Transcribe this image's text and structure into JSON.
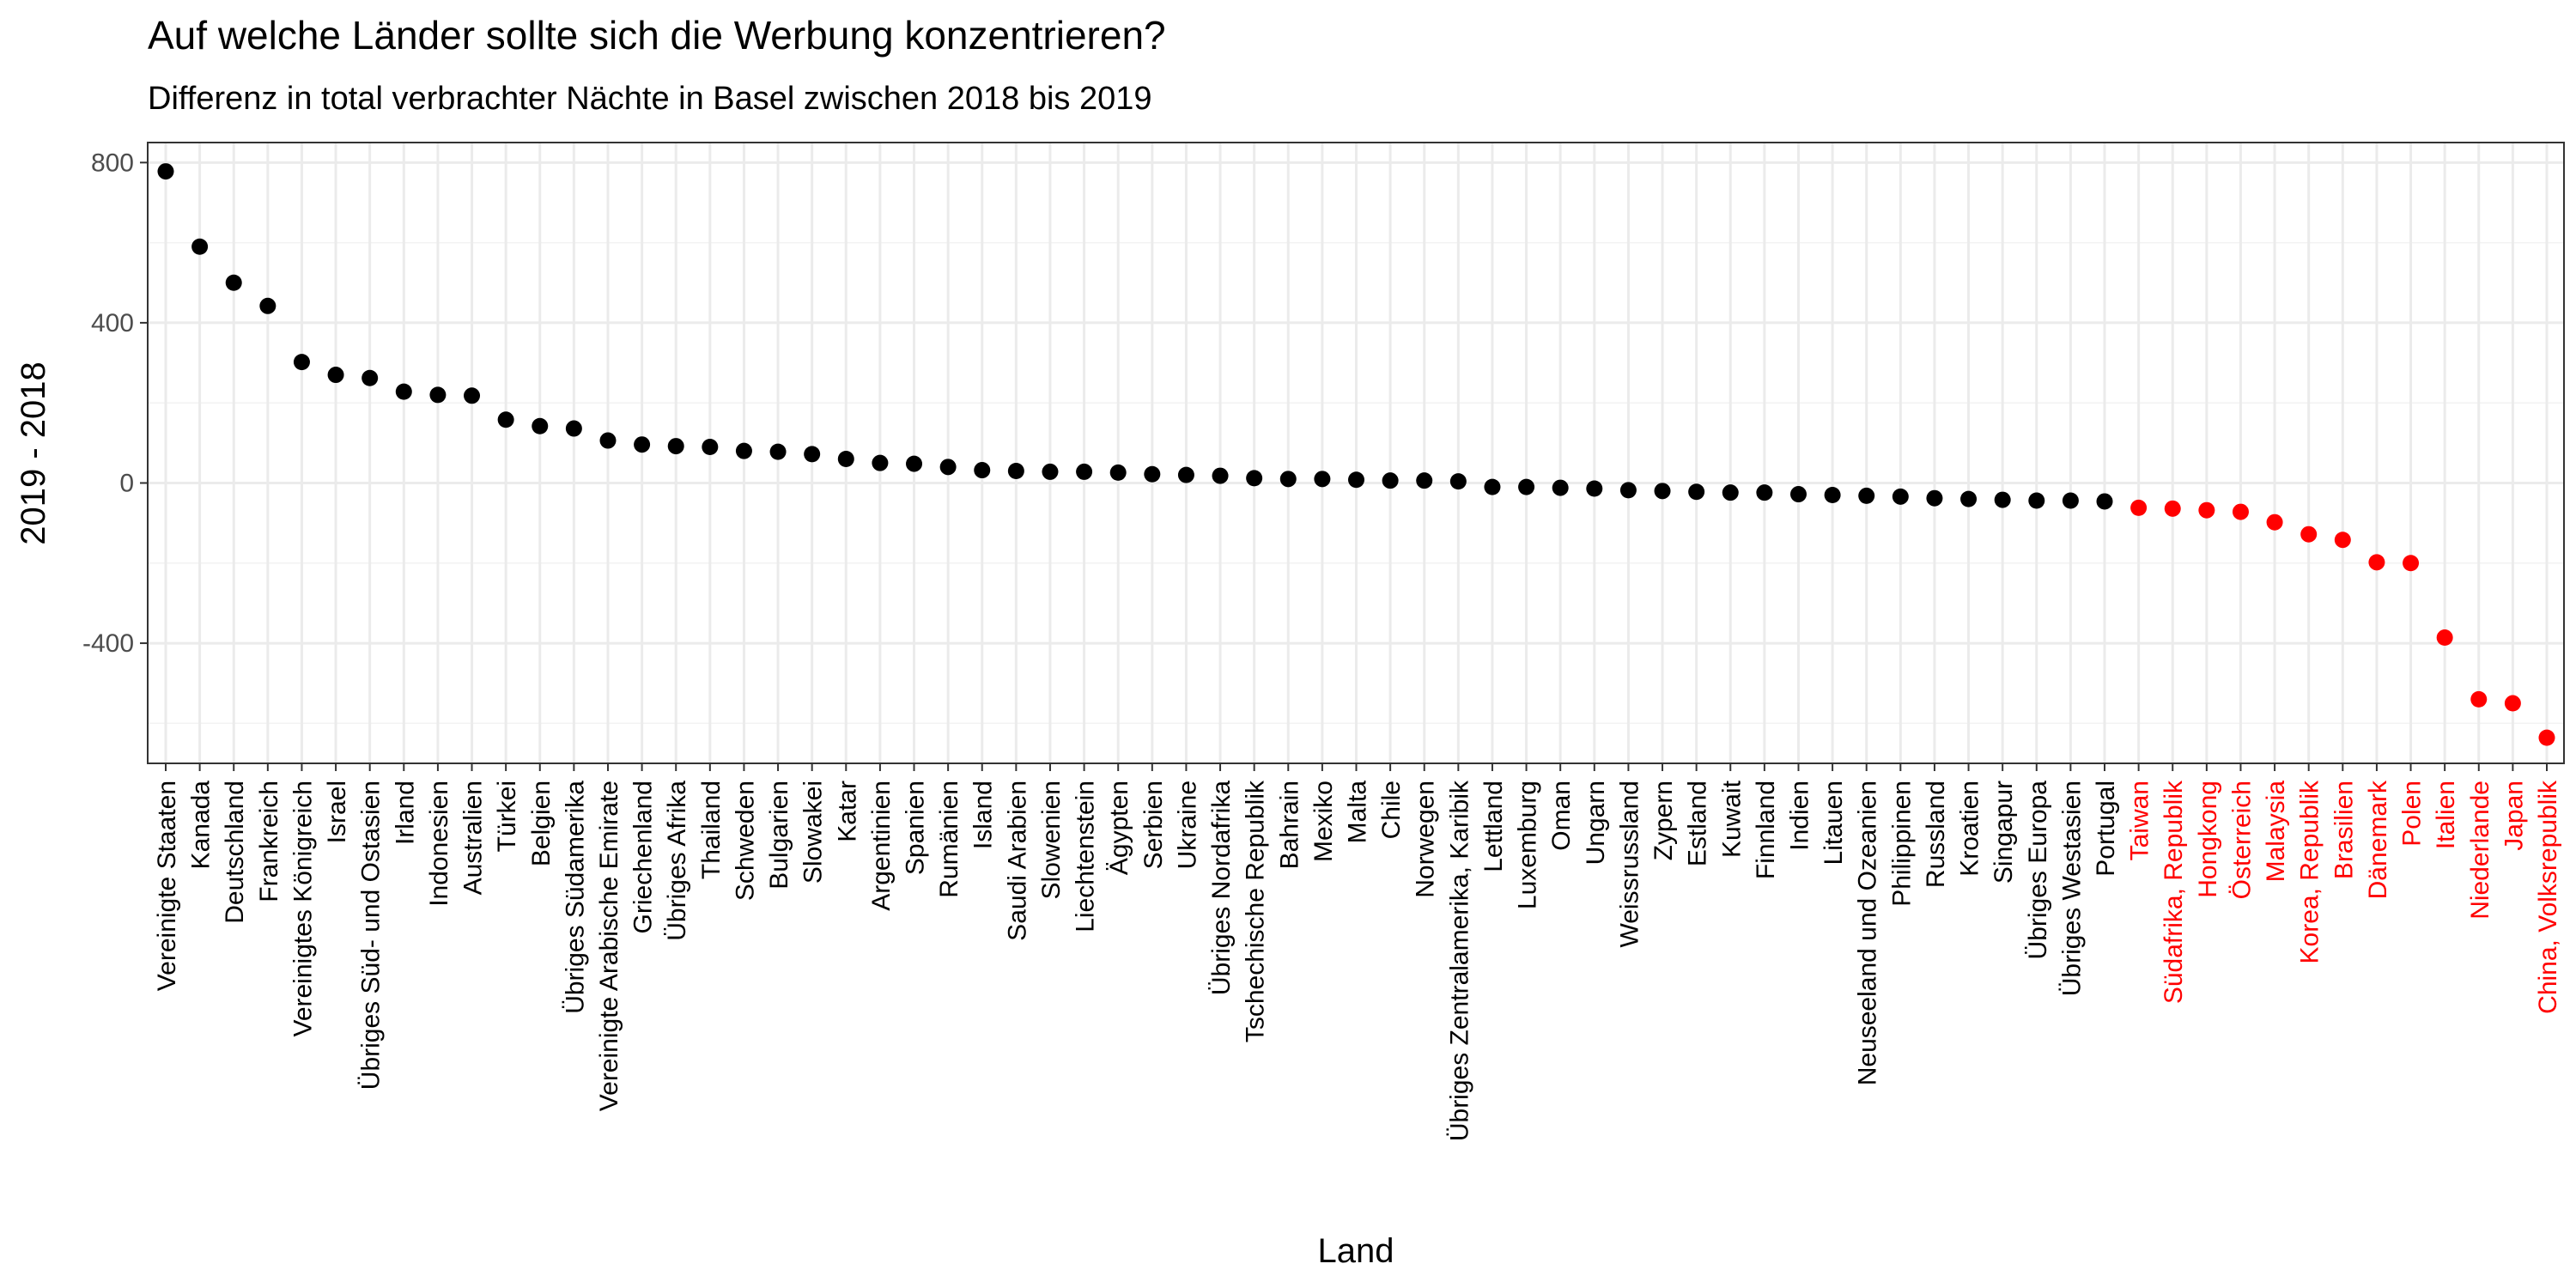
{
  "chart_data": {
    "type": "scatter",
    "title": "Auf welche Länder sollte sich die Werbung konzentrieren?",
    "subtitle": "Differenz in total verbrachter Nächte in Basel zwischen 2018 bis 2019",
    "xlabel": "Land",
    "ylabel": "2019 - 2018",
    "ylim": [
      -700,
      850
    ],
    "yticks": [
      -400,
      0,
      400,
      800
    ],
    "grid": true,
    "colors": {
      "default": "#000000",
      "highlight": "#ff0000"
    },
    "points": [
      {
        "label": "Vereinigte Staaten",
        "value": 778,
        "highlight": false
      },
      {
        "label": "Kanada",
        "value": 590,
        "highlight": false
      },
      {
        "label": "Deutschland",
        "value": 500,
        "highlight": false
      },
      {
        "label": "Frankreich",
        "value": 442,
        "highlight": false
      },
      {
        "label": "Vereinigtes Königreich",
        "value": 302,
        "highlight": false
      },
      {
        "label": "Israel",
        "value": 270,
        "highlight": false
      },
      {
        "label": "Übriges Süd- und Ostasien",
        "value": 262,
        "highlight": false
      },
      {
        "label": "Irland",
        "value": 228,
        "highlight": false
      },
      {
        "label": "Indonesien",
        "value": 220,
        "highlight": false
      },
      {
        "label": "Australien",
        "value": 218,
        "highlight": false
      },
      {
        "label": "Türkei",
        "value": 158,
        "highlight": false
      },
      {
        "label": "Belgien",
        "value": 142,
        "highlight": false
      },
      {
        "label": "Übriges Südamerika",
        "value": 136,
        "highlight": false
      },
      {
        "label": "Vereinigte Arabische Emirate",
        "value": 106,
        "highlight": false
      },
      {
        "label": "Griechenland",
        "value": 96,
        "highlight": false
      },
      {
        "label": "Übriges Afrika",
        "value": 92,
        "highlight": false
      },
      {
        "label": "Thailand",
        "value": 90,
        "highlight": false
      },
      {
        "label": "Schweden",
        "value": 80,
        "highlight": false
      },
      {
        "label": "Bulgarien",
        "value": 78,
        "highlight": false
      },
      {
        "label": "Slowakei",
        "value": 72,
        "highlight": false
      },
      {
        "label": "Katar",
        "value": 60,
        "highlight": false
      },
      {
        "label": "Argentinien",
        "value": 50,
        "highlight": false
      },
      {
        "label": "Spanien",
        "value": 48,
        "highlight": false
      },
      {
        "label": "Rumänien",
        "value": 40,
        "highlight": false
      },
      {
        "label": "Island",
        "value": 32,
        "highlight": false
      },
      {
        "label": "Saudi Arabien",
        "value": 30,
        "highlight": false
      },
      {
        "label": "Slowenien",
        "value": 28,
        "highlight": false
      },
      {
        "label": "Liechtenstein",
        "value": 28,
        "highlight": false
      },
      {
        "label": "Ägypten",
        "value": 26,
        "highlight": false
      },
      {
        "label": "Serbien",
        "value": 22,
        "highlight": false
      },
      {
        "label": "Ukraine",
        "value": 20,
        "highlight": false
      },
      {
        "label": "Übriges Nordafrika",
        "value": 18,
        "highlight": false
      },
      {
        "label": "Tschechische Republik",
        "value": 12,
        "highlight": false
      },
      {
        "label": "Bahrain",
        "value": 10,
        "highlight": false
      },
      {
        "label": "Mexiko",
        "value": 10,
        "highlight": false
      },
      {
        "label": "Malta",
        "value": 8,
        "highlight": false
      },
      {
        "label": "Chile",
        "value": 6,
        "highlight": false
      },
      {
        "label": "Norwegen",
        "value": 6,
        "highlight": false
      },
      {
        "label": "Übriges Zentralamerika, Karibik",
        "value": 4,
        "highlight": false
      },
      {
        "label": "Lettland",
        "value": -10,
        "highlight": false
      },
      {
        "label": "Luxemburg",
        "value": -10,
        "highlight": false
      },
      {
        "label": "Oman",
        "value": -12,
        "highlight": false
      },
      {
        "label": "Ungarn",
        "value": -14,
        "highlight": false
      },
      {
        "label": "Weissrussland",
        "value": -18,
        "highlight": false
      },
      {
        "label": "Zypern",
        "value": -20,
        "highlight": false
      },
      {
        "label": "Estland",
        "value": -22,
        "highlight": false
      },
      {
        "label": "Kuwait",
        "value": -24,
        "highlight": false
      },
      {
        "label": "Finnland",
        "value": -24,
        "highlight": false
      },
      {
        "label": "Indien",
        "value": -28,
        "highlight": false
      },
      {
        "label": "Litauen",
        "value": -30,
        "highlight": false
      },
      {
        "label": "Neuseeland und Ozeanien",
        "value": -32,
        "highlight": false
      },
      {
        "label": "Philippinen",
        "value": -34,
        "highlight": false
      },
      {
        "label": "Russland",
        "value": -38,
        "highlight": false
      },
      {
        "label": "Kroatien",
        "value": -40,
        "highlight": false
      },
      {
        "label": "Singapur",
        "value": -42,
        "highlight": false
      },
      {
        "label": "Übriges Europa",
        "value": -44,
        "highlight": false
      },
      {
        "label": "Übriges Westasien",
        "value": -44,
        "highlight": false
      },
      {
        "label": "Portugal",
        "value": -46,
        "highlight": false
      },
      {
        "label": "Taiwan",
        "value": -62,
        "highlight": true
      },
      {
        "label": "Südafrika, Republik",
        "value": -64,
        "highlight": true
      },
      {
        "label": "Hongkong",
        "value": -68,
        "highlight": true
      },
      {
        "label": "Österreich",
        "value": -72,
        "highlight": true
      },
      {
        "label": "Malaysia",
        "value": -98,
        "highlight": true
      },
      {
        "label": "Korea, Republik",
        "value": -128,
        "highlight": true
      },
      {
        "label": "Brasilien",
        "value": -142,
        "highlight": true
      },
      {
        "label": "Dänemark",
        "value": -198,
        "highlight": true
      },
      {
        "label": "Polen",
        "value": -200,
        "highlight": true
      },
      {
        "label": "Italien",
        "value": -386,
        "highlight": true
      },
      {
        "label": "Niederlande",
        "value": -540,
        "highlight": true
      },
      {
        "label": "Japan",
        "value": -550,
        "highlight": true
      },
      {
        "label": "China, Volksrepublik",
        "value": -636,
        "highlight": true
      }
    ]
  }
}
